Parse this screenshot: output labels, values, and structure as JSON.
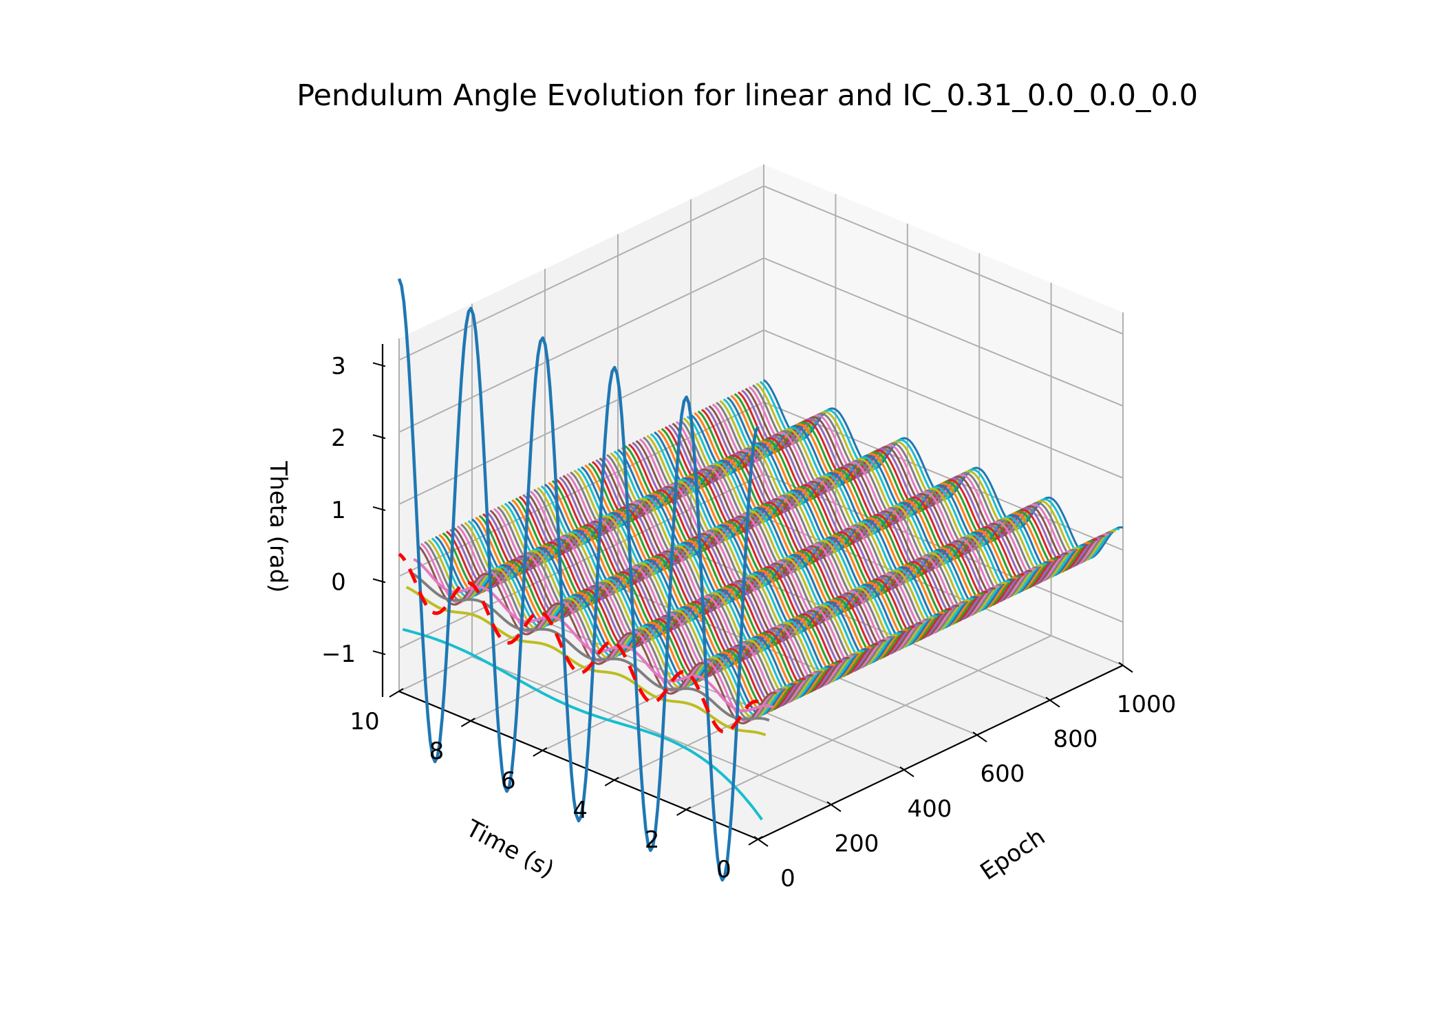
{
  "chart_data": {
    "type": "line",
    "projection": "3d",
    "title": "Pendulum Angle Evolution for linear and IC_0.31_0.0_0.0_0.0",
    "xlabel": "Epoch",
    "ylabel": "Time (s)",
    "zlabel": "Theta (rad)",
    "xlim": [
      0,
      1000
    ],
    "ylim": [
      0,
      10
    ],
    "zlim": [
      -1.6,
      3.3
    ],
    "x_ticks": [
      "0",
      "200",
      "400",
      "600",
      "800",
      "1000"
    ],
    "y_ticks": [
      "0",
      "2",
      "4",
      "6",
      "8",
      "10"
    ],
    "z_ticks": [
      "−1",
      "0",
      "1",
      "2",
      "3"
    ],
    "grid": true,
    "reference": {
      "epoch": 0,
      "color": "#ff0000",
      "style": "dashed",
      "description_of_curve": "true linear pendulum solution theta = 0.31 cos(3.13 t)"
    },
    "series": [
      {
        "epoch": 0,
        "color": "#1f77b4",
        "amplitude": 3.25,
        "omega": 3.14,
        "offset": 0.88,
        "t_max": 10
      },
      {
        "epoch": 10,
        "color": "#17becf",
        "shape": "slow_drift",
        "t_max": 10
      },
      {
        "epoch": 20,
        "color": "#bcbd22",
        "amplitude": 0.05,
        "omega": 3.13,
        "offset": -0.25,
        "t_max": 10
      },
      {
        "epoch": 30,
        "color": "#7f7f7f",
        "amplitude": 0.08,
        "omega": 3.13,
        "offset": -0.1,
        "t_max": 10
      },
      {
        "epoch": 40,
        "color": "#e377c2",
        "amplitude": 0.12,
        "omega": 3.13,
        "offset": 0.02,
        "t_max": 10
      },
      {
        "epoch_range": [
          50,
          1000
        ],
        "epoch_step": 10,
        "colors": [
          "#1f77b4",
          "#ff7f0e",
          "#2ca02c",
          "#d62728",
          "#9467bd",
          "#8c564b",
          "#e377c2",
          "#7f7f7f",
          "#bcbd22",
          "#17becf"
        ],
        "amplitude": 0.31,
        "omega": 3.13,
        "offset": 0,
        "t_max": 10
      }
    ]
  }
}
